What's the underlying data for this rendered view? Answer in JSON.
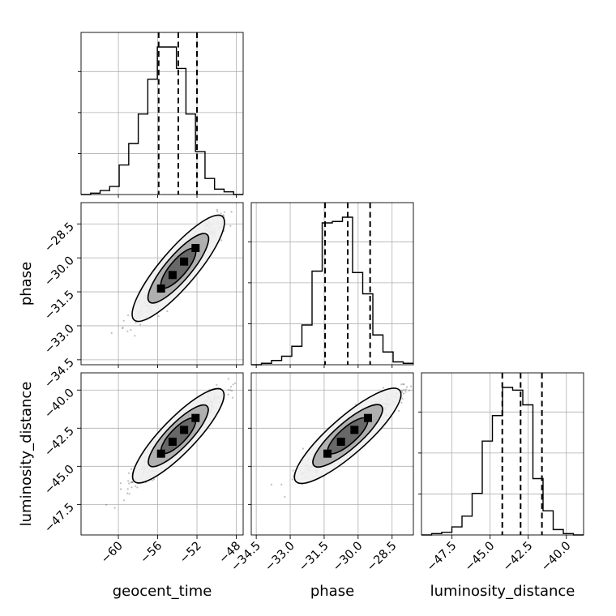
{
  "chart_data": {
    "type": "corner",
    "parameters": [
      "geocent_time",
      "phase",
      "luminosity_distance"
    ],
    "axis_ranges": {
      "geocent_time": [
        -63.8,
        -47.3
      ],
      "phase": [
        -34.72,
        -27.56
      ],
      "luminosity_distance": [
        -49.5,
        -38.87
      ]
    },
    "ticks": {
      "geocent_time": [
        -60,
        -56,
        -52,
        -48
      ],
      "phase": [
        -34.5,
        -33.0,
        -31.5,
        -30.0,
        -28.5
      ],
      "luminosity_distance": [
        -47.5,
        -45.0,
        -42.5,
        -40.0
      ]
    },
    "tick_labels": {
      "geocent_time": [
        "−60",
        "−56",
        "−52",
        "−48"
      ],
      "phase": [
        "−34.5",
        "−33.0",
        "−31.5",
        "−30.0",
        "−28.5"
      ],
      "luminosity_distance": [
        "−47.5",
        "−45.0",
        "−42.5",
        "−40.0"
      ]
    },
    "quantiles": {
      "geocent_time": [
        -55.9,
        -53.9,
        -52.0
      ],
      "phase": [
        -31.46,
        -30.46,
        -29.47
      ],
      "luminosity_distance": [
        -44.2,
        -43.0,
        -41.6
      ]
    },
    "histograms": {
      "geocent_time": [
        0,
        1,
        3,
        6,
        22,
        38,
        60,
        86,
        110,
        110,
        94,
        60,
        32,
        12,
        4,
        2,
        0
      ],
      "phase": [
        0,
        1,
        3,
        6,
        13,
        28,
        66,
        100,
        101,
        104,
        65,
        50,
        21,
        9,
        2,
        1
      ],
      "luminosity_distance": [
        0,
        1,
        2,
        6,
        14,
        31,
        70,
        89,
        110,
        108,
        97,
        42,
        18,
        4,
        1,
        0
      ]
    },
    "histogram_edges": {
      "geocent_time": [
        -63.8,
        -47.3
      ],
      "phase": [
        -34.72,
        -27.56
      ],
      "luminosity_distance": [
        -49.5,
        -38.87
      ]
    },
    "grid": true
  }
}
